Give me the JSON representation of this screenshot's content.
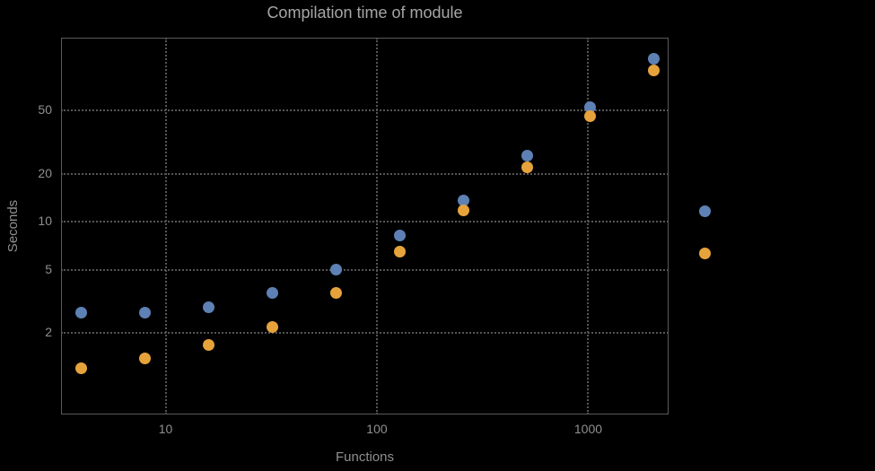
{
  "chart_data": {
    "type": "scatter",
    "title": "Compilation time of module",
    "xlabel": "Functions",
    "ylabel": "Seconds",
    "x_scale": "log",
    "y_scale": "log",
    "grid": true,
    "legend_position": "right-outside-markers-only",
    "xlim": [
      3.2,
      2400
    ],
    "ylim": [
      0.62,
      142
    ],
    "x_ticks": [
      10,
      100,
      1000
    ],
    "y_ticks": [
      2,
      5,
      10,
      20,
      50
    ],
    "x": [
      4,
      8,
      16,
      32,
      64,
      128,
      256,
      512,
      1024,
      2048
    ],
    "series": [
      {
        "name": "blue",
        "color": "#5e81b5",
        "values": [
          2.7,
          2.7,
          2.9,
          3.6,
          5.0,
          8.2,
          13.5,
          26,
          52,
          105
        ]
      },
      {
        "name": "orange",
        "color": "#e7a33b",
        "values": [
          1.2,
          1.4,
          1.7,
          2.2,
          3.6,
          6.5,
          11.8,
          22,
          46,
          88
        ]
      }
    ],
    "colors": {
      "background": "#000000",
      "grid": "#555555",
      "frame": "#5a5a5a",
      "title_text": "#a6a6a6",
      "tick_text": "#8f8f8f",
      "series_blue": "#5e81b5",
      "series_orange": "#e7a33b"
    }
  }
}
